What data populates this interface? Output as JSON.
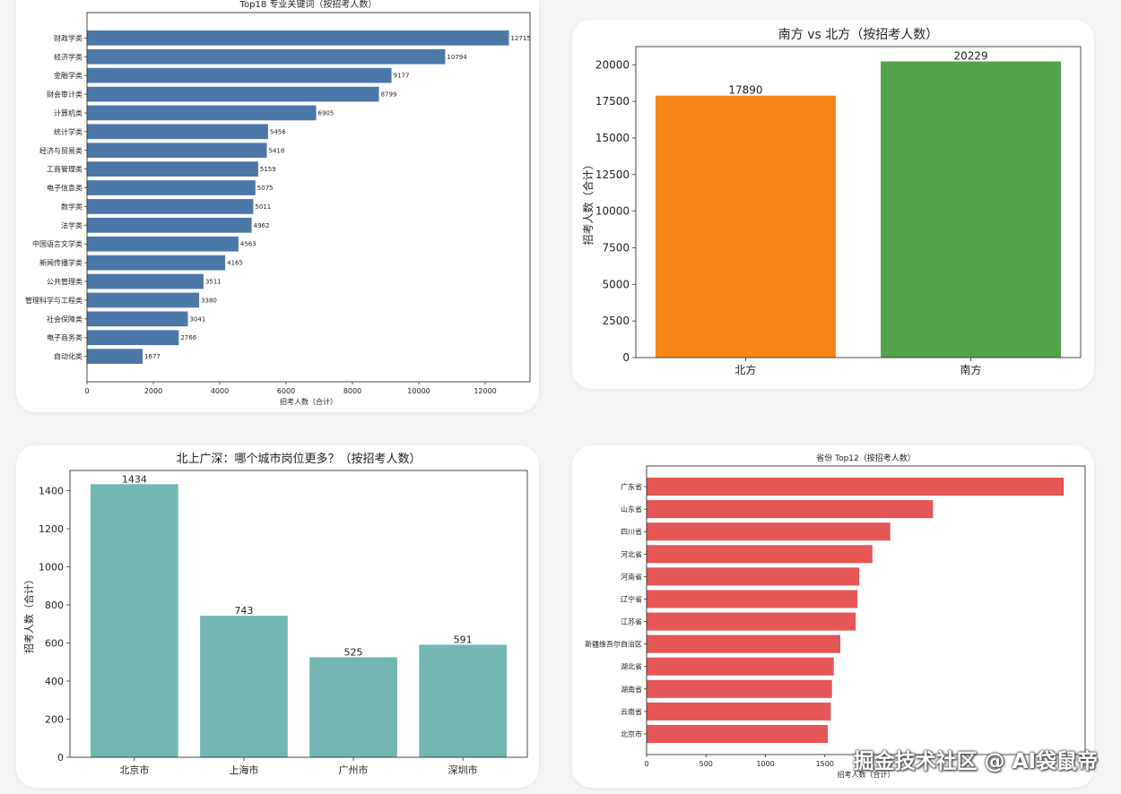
{
  "chart_data": [
    {
      "id": "top18",
      "type": "bar",
      "orientation": "horizontal",
      "title": "Top18 专业关键词（按招考人数）",
      "xlabel": "招考人数（合计）",
      "ylabel": "",
      "categories": [
        "财政学类",
        "经济学类",
        "金融学类",
        "财会审计类",
        "计算机类",
        "统计学类",
        "经济与贸易类",
        "工商管理类",
        "电子信息类",
        "数学类",
        "法学类",
        "中国语言文学类",
        "新闻传播学类",
        "公共管理类",
        "管理科学与工程类",
        "社会保障类",
        "电子商务类",
        "自动化类"
      ],
      "values": [
        12715,
        10794,
        9177,
        8799,
        6905,
        5456,
        5418,
        5159,
        5075,
        5011,
        4962,
        4563,
        4165,
        3511,
        3380,
        3041,
        2766,
        1677
      ],
      "value_labels": [
        "12715",
        "10794",
        "9177",
        "8799",
        "6905",
        "5456",
        "5418",
        "5159",
        "5075",
        "5011",
        "4962",
        "4563",
        "4165",
        "3511",
        "3380",
        "3041",
        "2766",
        "1677"
      ],
      "xlim": [
        0,
        13350
      ],
      "xticks": [
        0,
        2000,
        4000,
        6000,
        8000,
        10000,
        12000
      ],
      "color": "#4c78a8",
      "grid": false
    },
    {
      "id": "south-north",
      "type": "bar",
      "title": "南方 vs 北方（按招考人数）",
      "xlabel": "",
      "ylabel": "招考人数（合计）",
      "categories": [
        "北方",
        "南方"
      ],
      "values": [
        17890,
        20229
      ],
      "value_labels": [
        "17890",
        "20229"
      ],
      "colors": [
        "#f58518",
        "#54a24b"
      ],
      "ylim": [
        0,
        21240
      ],
      "yticks": [
        0,
        2500,
        5000,
        7500,
        10000,
        12500,
        15000,
        17500,
        20000
      ],
      "grid": false
    },
    {
      "id": "bsgs",
      "type": "bar",
      "title": "北上广深：哪个城市岗位更多？（按招考人数）",
      "xlabel": "",
      "ylabel": "招考人数（合计）",
      "categories": [
        "北京市",
        "上海市",
        "广州市",
        "深圳市"
      ],
      "values": [
        1434,
        743,
        525,
        591
      ],
      "value_labels": [
        "1434",
        "743",
        "525",
        "591"
      ],
      "color": "#72b7b2",
      "ylim": [
        0,
        1506
      ],
      "yticks": [
        0,
        200,
        400,
        600,
        800,
        1000,
        1200,
        1400
      ],
      "grid": false
    },
    {
      "id": "province",
      "type": "bar",
      "orientation": "horizontal",
      "title": "省份 Top12（按招考人数）",
      "xlabel": "招考人数（合计）",
      "ylabel": "",
      "categories": [
        "广东省",
        "山东省",
        "四川省",
        "河北省",
        "河南省",
        "辽宁省",
        "江苏省",
        "新疆维吾尔自治区",
        "湖北省",
        "湖南省",
        "云南省",
        "北京市"
      ],
      "values": [
        3510,
        2410,
        2050,
        1900,
        1790,
        1775,
        1760,
        1630,
        1575,
        1560,
        1550,
        1525
      ],
      "xlim": [
        0,
        3690
      ],
      "xticks": [
        0,
        500,
        1000,
        1500
      ],
      "xtick_labels": [
        "0",
        "500",
        "1000",
        "1500"
      ],
      "color": "#e45756",
      "grid": false
    }
  ],
  "watermark": "掘金技术社区 @ AI袋鼠帝"
}
